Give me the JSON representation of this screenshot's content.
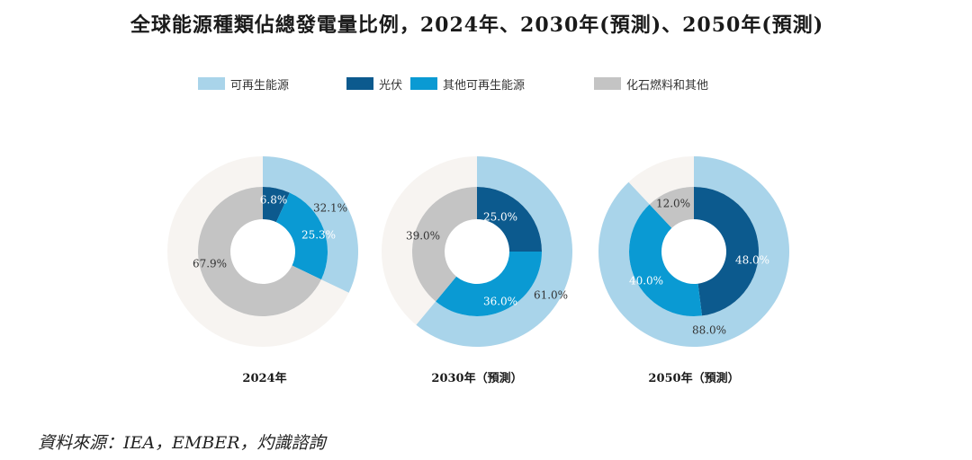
{
  "title": "全球能源種類佔總發電量比例，2024年、2030年(預測)、2050年(預測)",
  "legend": [
    {
      "label": "可再生能源",
      "color": "#a9d4ea"
    },
    {
      "label": "光伏",
      "color": "#0c5a8e"
    },
    {
      "label": "其他可再生能源",
      "color": "#0a9ad3"
    },
    {
      "label": "化石燃料和其他",
      "color": "#c4c4c4"
    }
  ],
  "chart_data": [
    {
      "type": "donut",
      "caption": "2024年",
      "outer": {
        "renewable": 32.1,
        "label": "32.1%"
      },
      "inner": {
        "pv": 6.8,
        "other_renewable": 25.3,
        "fossil": 67.9,
        "labels": {
          "pv": "6.8%",
          "other_renewable": "25.3%",
          "fossil": "67.9%"
        }
      }
    },
    {
      "type": "donut",
      "caption": "2030年（預測）",
      "outer": {
        "renewable": 61.0,
        "label": "61.0%"
      },
      "inner": {
        "pv": 25.0,
        "other_renewable": 36.0,
        "fossil": 39.0,
        "labels": {
          "pv": "25.0%",
          "other_renewable": "36.0%",
          "fossil": "39.0%"
        }
      }
    },
    {
      "type": "donut",
      "caption": "2050年（預測）",
      "outer": {
        "renewable": 88.0,
        "label": "88.0%"
      },
      "inner": {
        "pv": 48.0,
        "other_renewable": 40.0,
        "fossil": 12.0,
        "labels": {
          "pv": "48.0%",
          "other_renewable": "40.0%",
          "fossil": "12.0%"
        }
      }
    }
  ],
  "source": "資料來源：IEA，EMBER，灼識諮詢"
}
